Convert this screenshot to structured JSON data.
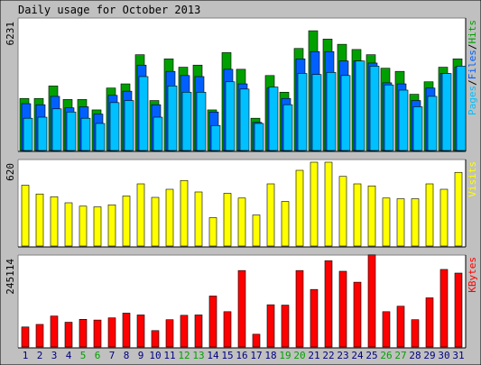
{
  "chart_data": {
    "title": "Daily usage for October 2013",
    "days": [
      "1",
      "2",
      "3",
      "4",
      "5",
      "6",
      "7",
      "8",
      "9",
      "10",
      "11",
      "12",
      "13",
      "14",
      "15",
      "16",
      "17",
      "18",
      "19",
      "20",
      "21",
      "22",
      "23",
      "24",
      "25",
      "26",
      "27",
      "28",
      "29",
      "30",
      "31"
    ],
    "weekend_days": [
      "5",
      "6",
      "12",
      "13",
      "19",
      "20",
      "26",
      "27"
    ],
    "colors": {
      "hits": "#00a000",
      "files": "#0060ff",
      "pages": "#00c0ff",
      "visits": "#ffff00",
      "kbytes": "#ff0000",
      "weekday_label": "#000080",
      "weekend_label": "#00a000",
      "background": "#c0c0c0",
      "plot": "#ffffff"
    },
    "panels": [
      {
        "type": "bar",
        "axis_max_label": "6231",
        "ylim": [
          0,
          6231
        ],
        "series": [
          {
            "name": "Hits",
            "values": [
              2500,
              2500,
              3100,
              2450,
              2450,
              1950,
              3000,
              3200,
              4600,
              2400,
              4400,
              4000,
              4100,
              1950,
              4700,
              3900,
              1550,
              3600,
              2800,
              4900,
              5750,
              5350,
              5100,
              4850,
              4600,
              3950,
              3800,
              2700,
              3300,
              4000,
              4400
            ]
          },
          {
            "name": "Files",
            "values": [
              2250,
              2200,
              2600,
              2050,
              2100,
              1750,
              2650,
              2850,
              4100,
              2200,
              3800,
              3600,
              3550,
              1850,
              3900,
              3200,
              1350,
              3000,
              2500,
              4400,
              4750,
              4750,
              4300,
              4300,
              4200,
              3250,
              3200,
              2400,
              3000,
              3700,
              4000
            ]
          },
          {
            "name": "Pages",
            "values": [
              1550,
              1600,
              2000,
              1850,
              1550,
              1300,
              2300,
              2400,
              3550,
              1600,
              3100,
              2800,
              2800,
              1200,
              3300,
              2950,
              1300,
              3050,
              2200,
              3700,
              3650,
              3750,
              3600,
              4300,
              4050,
              3150,
              2900,
              2100,
              2600,
              3700,
              4050
            ]
          }
        ],
        "legend": [
          "Pages",
          "Files",
          "Hits"
        ]
      },
      {
        "type": "bar",
        "axis_max_label": "620",
        "ylim": [
          0,
          620
        ],
        "series": [
          {
            "name": "Visits",
            "values": [
              450,
              385,
              365,
              320,
              295,
              290,
              305,
              370,
              460,
              360,
              420,
              485,
              400,
              210,
              390,
              355,
              230,
              460,
              330,
              560,
              620,
              620,
              515,
              460,
              445,
              355,
              350,
              350,
              460,
              420,
              545
            ]
          }
        ],
        "legend": [
          "Visits"
        ]
      },
      {
        "type": "bar",
        "axis_max_label": "245114",
        "ylim": [
          0,
          245114
        ],
        "series": [
          {
            "name": "KBytes",
            "values": [
              55000,
              62000,
              85000,
              68000,
              76000,
              74000,
              80000,
              93000,
              88000,
              45000,
              75000,
              87000,
              88000,
              140000,
              97000,
              210000,
              35000,
              116000,
              115000,
              210000,
              158000,
              237000,
              208000,
              178000,
              253000,
              97000,
              112000,
              75000,
              135000,
              213000,
              203000
            ]
          }
        ],
        "legend": [
          "KBytes"
        ]
      }
    ]
  }
}
